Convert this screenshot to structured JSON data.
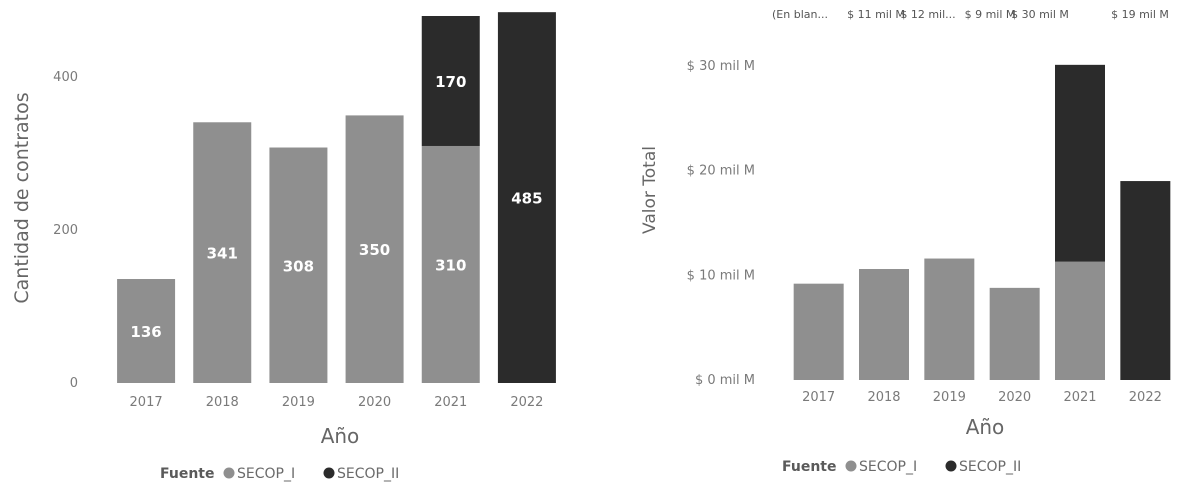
{
  "colors": {
    "SECOP_I": "#8f8f8f",
    "SECOP_II": "#2b2b2b",
    "text": "#6f6f6f",
    "bar_label": "#ffffff"
  },
  "legend": {
    "title": "Fuente",
    "items": [
      {
        "name": "SECOP_I",
        "color": "#8f8f8f"
      },
      {
        "name": "SECOP_II",
        "color": "#2b2b2b"
      }
    ]
  },
  "chart_data": [
    {
      "type": "bar",
      "stacked": true,
      "xlabel": "Año",
      "ylabel": "Cantidad de contratos",
      "ylim": [
        0,
        480
      ],
      "yticks": [
        0,
        200,
        400
      ],
      "ytick_labels": [
        "0",
        "200",
        "400"
      ],
      "categories": [
        "2017",
        "2018",
        "2019",
        "2020",
        "2021",
        "2022"
      ],
      "series": [
        {
          "name": "SECOP_I",
          "values": [
            136,
            341,
            308,
            350,
            310,
            0
          ]
        },
        {
          "name": "SECOP_II",
          "values": [
            0,
            0,
            0,
            0,
            170,
            485
          ]
        }
      ],
      "data_labels": {
        "SECOP_I": [
          "136",
          "341",
          "308",
          "350",
          "310",
          ""
        ],
        "SECOP_II": [
          "",
          "",
          "",
          "",
          "170",
          "485"
        ]
      },
      "grid": false,
      "legend_position": "bottom-center"
    },
    {
      "type": "bar",
      "stacked": true,
      "xlabel": "Año",
      "ylabel": "Valor Total",
      "ylim": [
        0,
        34
      ],
      "yticks": [
        0,
        10,
        20,
        30
      ],
      "ytick_labels": [
        "$ 0 mil M",
        "$ 10 mil M",
        "$ 20 mil M",
        "$ 30 mil M"
      ],
      "categories": [
        "2017",
        "2018",
        "2019",
        "2020",
        "2021",
        "2022"
      ],
      "series": [
        {
          "name": "SECOP_I",
          "values": [
            9.2,
            10.6,
            11.6,
            8.8,
            11.3,
            0
          ]
        },
        {
          "name": "SECOP_II",
          "values": [
            0,
            0,
            0,
            0,
            18.8,
            19.0
          ]
        }
      ],
      "top_labels": [
        "(En blan...",
        "$ 11 mil M",
        "$ 12 mil...",
        "$ 9 mil M",
        "$ 30 mil M",
        "$ 19 mil M"
      ],
      "grid": false,
      "legend_position": "bottom-center"
    }
  ]
}
